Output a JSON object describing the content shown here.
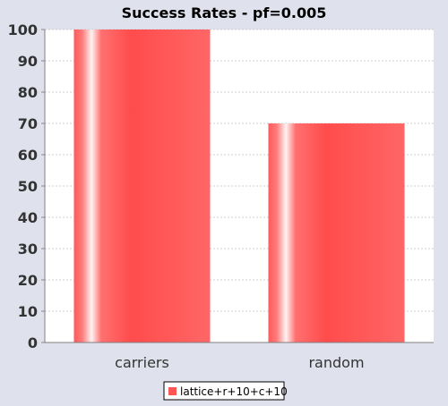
{
  "chart_data": {
    "type": "bar",
    "title": "Success Rates - pf=0.005",
    "xlabel": "",
    "ylabel": "",
    "categories": [
      "carriers",
      "random"
    ],
    "series": [
      {
        "name": "lattice+r+10+c+10",
        "values": [
          100,
          70
        ]
      }
    ],
    "ylim": [
      0,
      100
    ],
    "yticks": [
      0,
      10,
      20,
      30,
      40,
      50,
      60,
      70,
      80,
      90,
      100
    ],
    "grid": true,
    "legend": "bottom-center"
  },
  "colors": {
    "background": "#dfe1ec",
    "plot_background": "#ffffff",
    "bar": "#ff5555",
    "gridline": "#c0c0c0"
  }
}
